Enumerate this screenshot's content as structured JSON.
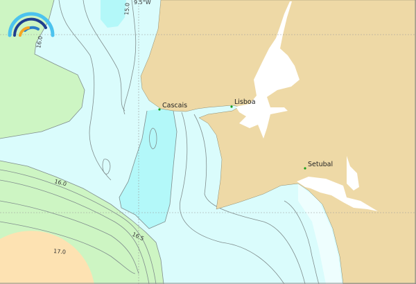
{
  "map": {
    "colors": {
      "land": "#eed9a6",
      "ocean_light": "#dafcfc",
      "ocean_cyan": "#b3f8f9",
      "green": "#cdf5c3",
      "orange": "#fde2b2",
      "estuary": "#ffffff",
      "contour": "#7f8c8c",
      "city_marker": "#1aa01a"
    },
    "grid_label": "9.5°W",
    "contour_labels": [
      "15.0",
      "16.0",
      "16.0",
      "16.5",
      "17.0"
    ],
    "cities": [
      {
        "name": "Cascais"
      },
      {
        "name": "Lisboa"
      },
      {
        "name": "Setubal"
      }
    ],
    "logo": {
      "icon": "rainbow-arcs-logo"
    }
  }
}
